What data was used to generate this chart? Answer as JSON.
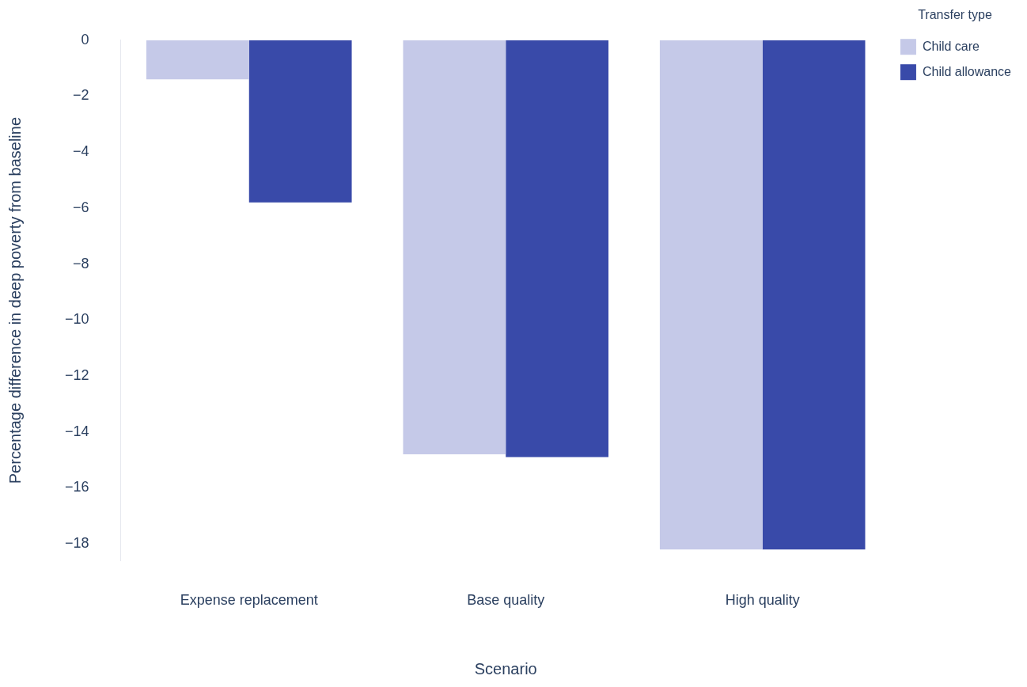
{
  "chart_data": {
    "type": "bar",
    "xlabel": "Scenario",
    "ylabel": "Percentage difference in deep poverty from baseline",
    "legend_title": "Transfer type",
    "categories": [
      "Expense replacement",
      "Base quality",
      "High quality"
    ],
    "series": [
      {
        "name": "Child care",
        "color": "#c5c9e8",
        "values": [
          -1.4,
          -14.8,
          -18.2
        ]
      },
      {
        "name": "Child allowance",
        "color": "#394aa9",
        "values": [
          -5.8,
          -14.9,
          -18.2
        ]
      }
    ],
    "ylim": [
      -18.6,
      0
    ],
    "yticks": [
      0,
      -2,
      -4,
      -6,
      -8,
      -10,
      -12,
      -14,
      -16,
      -18
    ],
    "grid": false,
    "legend": "top right"
  }
}
